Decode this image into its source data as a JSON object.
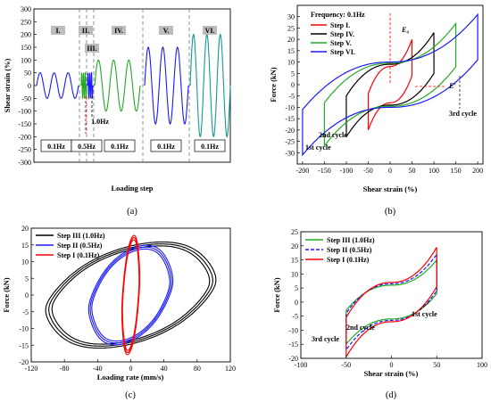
{
  "captions": [
    "(a)",
    "(b)",
    "(c)",
    "(d)"
  ],
  "chart_data": [
    {
      "id": "a",
      "type": "line",
      "xlabel": "Loading step",
      "ylabel": "Shear strain (%)",
      "ylim": [
        -300,
        300
      ],
      "yticks": [
        -300,
        -250,
        -200,
        -150,
        -100,
        -50,
        0,
        50,
        100,
        150,
        200,
        250,
        300
      ],
      "xticks": [],
      "step_labels": [
        "I.",
        "II.",
        "III.",
        "IV.",
        "V.",
        "VI."
      ],
      "frequency_labels": [
        "0.1Hz",
        "0.5Hz",
        "0.1Hz",
        "0.1Hz",
        "0.1Hz"
      ],
      "extra_label": "1.0Hz",
      "segments": [
        {
          "step": "I",
          "amplitude": 50,
          "cycles": 3,
          "color": "#1a1aff"
        },
        {
          "step": "II",
          "amplitude": 50,
          "cycles": 3,
          "color": "#22aa22"
        },
        {
          "step": "III",
          "amplitude": 50,
          "cycles": 3,
          "color": "#1a1aff"
        },
        {
          "step": "IV",
          "amplitude": 100,
          "cycles": 3,
          "color": "#22aa22"
        },
        {
          "step": "V",
          "amplitude": 150,
          "cycles": 3,
          "color": "#1a1aff"
        },
        {
          "step": "VI",
          "amplitude": 200,
          "cycles": 3,
          "color": "#159a8a"
        }
      ]
    },
    {
      "id": "b",
      "type": "line",
      "xlabel": "Shear strain (%)",
      "ylabel": "Force (kN)",
      "xlim": [
        -200,
        200
      ],
      "ylim": [
        -35,
        35
      ],
      "xticks": [
        -200,
        -150,
        -100,
        -50,
        0,
        50,
        100,
        150,
        200
      ],
      "yticks": [
        -30,
        -25,
        -20,
        -15,
        -10,
        -5,
        0,
        5,
        10,
        15,
        20,
        25,
        30
      ],
      "legend_title": "Frequency: 0.1Hz",
      "legend_position": "top-left",
      "annotations": [
        "E₀",
        "E'",
        "3rd cycle",
        "2nd cycle",
        "1st cycle"
      ],
      "series": [
        {
          "name": "Step I.",
          "color": "#ff0000",
          "amplitude": 50,
          "fmax": 20,
          "fi": 8
        },
        {
          "name": "Step IV.",
          "color": "#000000",
          "amplitude": 100,
          "fmax": 23,
          "fi": 9
        },
        {
          "name": "Step V.",
          "color": "#22aa22",
          "amplitude": 150,
          "fmax": 27,
          "fi": 9.5
        },
        {
          "name": "Step VI.",
          "color": "#1a1aff",
          "amplitude": 200,
          "fmax": 31,
          "fi": 10
        }
      ]
    },
    {
      "id": "c",
      "type": "line",
      "xlabel": "Loading rate (mm/s)",
      "ylabel": "Force (kN)",
      "xlim": [
        -120,
        120
      ],
      "ylim": [
        -20,
        20
      ],
      "xticks": [
        -120,
        -80,
        -40,
        0,
        40,
        80,
        120
      ],
      "yticks": [
        -20,
        -15,
        -10,
        -5,
        0,
        5,
        10,
        15,
        20
      ],
      "legend_position": "top-left",
      "series": [
        {
          "name": "Step III  (1.0Hz)",
          "color": "#000000",
          "vmax": 95,
          "fmax": 16
        },
        {
          "name": "Step II  (0.5Hz)",
          "color": "#1a1aff",
          "vmax": 47,
          "fmax": 15
        },
        {
          "name": "Step I  (0.1Hz)",
          "color": "#ff0000",
          "vmax": 10,
          "fmax": 18
        }
      ]
    },
    {
      "id": "d",
      "type": "line",
      "xlabel": "Shear strain (%)",
      "ylabel": "Force (kN)",
      "xlim": [
        -100,
        100
      ],
      "ylim": [
        -20,
        25
      ],
      "xticks": [
        -100,
        -50,
        0,
        50,
        100
      ],
      "yticks": [
        -20,
        -15,
        -10,
        -5,
        0,
        5,
        10,
        15,
        20,
        25
      ],
      "legend_position": "top-left",
      "annotations": [
        "1st cycle",
        "2nd cycle",
        "3rd cycle"
      ],
      "series": [
        {
          "name": "Step III  (1.0Hz)",
          "color": "#22aa22",
          "amplitude": 50,
          "fmax": 15,
          "fi": 6
        },
        {
          "name": "Step II  (0.5Hz)",
          "color": "#1a1aff",
          "amplitude": 50,
          "fmax": 17,
          "fi": 6.5
        },
        {
          "name": "Step I  (0.1Hz)",
          "color": "#ff0000",
          "amplitude": 50,
          "fmax": 19.5,
          "fi": 7
        }
      ]
    }
  ]
}
